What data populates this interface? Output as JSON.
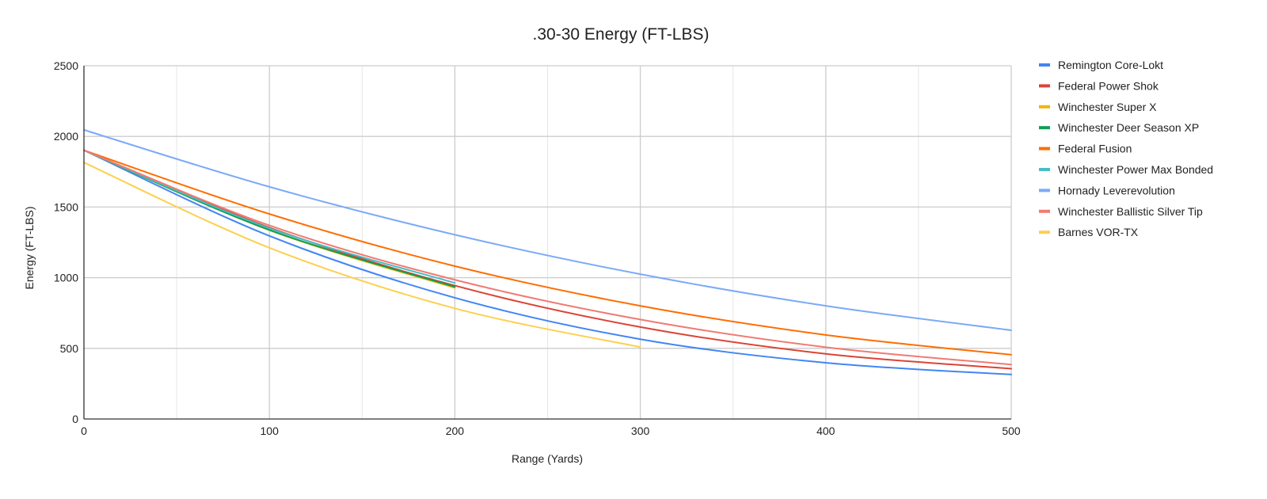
{
  "chart_data": {
    "type": "line",
    "title": ".30-30 Energy (FT-LBS)",
    "xlabel": "Range (Yards)",
    "ylabel": "Energy (FT-LBS)",
    "xlim": [
      0,
      500
    ],
    "ylim": [
      0,
      2500
    ],
    "x_ticks": [
      0,
      100,
      200,
      300,
      400,
      500
    ],
    "y_ticks": [
      0,
      500,
      1000,
      1500,
      2000,
      2500
    ],
    "x_tick_labels": [
      "0",
      "100",
      "200",
      "300",
      "400",
      "500"
    ],
    "y_tick_labels": [
      "0",
      "500",
      "1000",
      "1500",
      "2000",
      "2500"
    ],
    "x_minor_ticks": [
      50,
      150,
      250,
      350,
      450
    ],
    "grid": true,
    "legend_position": "right",
    "series": [
      {
        "name": "Remington Core-Lokt",
        "color": "#4285f4",
        "x": [
          0,
          100,
          200,
          300,
          400,
          500
        ],
        "values": [
          1902,
          1296,
          858,
          565,
          398,
          315
        ]
      },
      {
        "name": "Federal Power Shok",
        "color": "#db4437",
        "x": [
          0,
          100,
          200,
          300,
          400,
          500
        ],
        "values": [
          1902,
          1355,
          944,
          651,
          461,
          356
        ]
      },
      {
        "name": "Winchester Super X",
        "color": "#f4b400",
        "x": [
          0,
          100,
          200
        ],
        "values": [
          1902,
          1336,
          928
        ]
      },
      {
        "name": "Winchester Deer Season XP",
        "color": "#0f9d58",
        "x": [
          0,
          100,
          200
        ],
        "values": [
          1902,
          1338,
          935
        ]
      },
      {
        "name": "Federal Fusion",
        "color": "#ff6d01",
        "x": [
          0,
          100,
          200,
          300,
          400,
          500
        ],
        "values": [
          1902,
          1451,
          1082,
          801,
          595,
          455
        ]
      },
      {
        "name": "Winchester Power Max Bonded",
        "color": "#46bdc6",
        "x": [
          0,
          100,
          200
        ],
        "values": [
          1902,
          1350,
          963
        ]
      },
      {
        "name": "Hornady Leverevolution",
        "color": "#7baaf7",
        "x": [
          0,
          100,
          200,
          300,
          400,
          500
        ],
        "values": [
          2046,
          1643,
          1304,
          1025,
          801,
          628
        ]
      },
      {
        "name": "Winchester Ballistic Silver Tip",
        "color": "#f07b72",
        "x": [
          0,
          100,
          200,
          300,
          400,
          500
        ],
        "values": [
          1902,
          1370,
          985,
          704,
          508,
          385
        ]
      },
      {
        "name": "Barnes VOR-TX",
        "color": "#fcd04f",
        "x": [
          0,
          100,
          200,
          300
        ],
        "values": [
          1815,
          1212,
          783,
          509
        ]
      }
    ]
  }
}
